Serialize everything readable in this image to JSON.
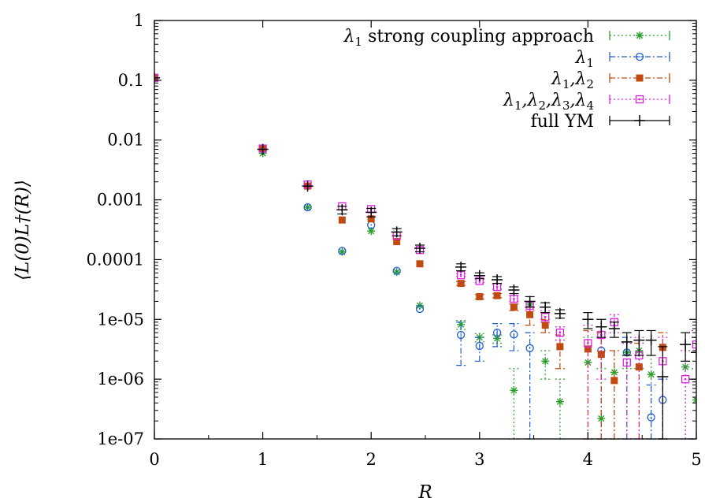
{
  "chart_data": {
    "type": "scatter",
    "title": "",
    "xlabel": "R",
    "ylabel": "⟨L(0)L†(R)⟩",
    "xlim": [
      0,
      5
    ],
    "ylim": [
      1e-07,
      1
    ],
    "yscale": "log",
    "xticks": [
      "0",
      "1",
      "2",
      "3",
      "4",
      "5"
    ],
    "yticks": [
      "1e-07",
      "1e-06",
      "1e-05",
      "0.0001",
      "0.001",
      "0.01",
      "0.1",
      "1"
    ],
    "grid": false,
    "legend_position": "top-right",
    "series": [
      {
        "name": "λ1 strong coupling approach",
        "color": "#2ca02c",
        "marker": "asterisk",
        "linestyle": "dotted",
        "points": [
          [
            0,
            0.11,
            0.11,
            0.11
          ],
          [
            1,
            0.006,
            0.006,
            0.006
          ],
          [
            1.414,
            0.00075,
            0.00075,
            0.00075
          ],
          [
            1.732,
            0.000135,
            0.000135,
            0.000135
          ],
          [
            2,
            0.0003,
            0.0003,
            0.0003
          ],
          [
            2.236,
            6.2e-05,
            6.2e-05,
            6.2e-05
          ],
          [
            2.449,
            1.7e-05,
            1.7e-05,
            1.7e-05
          ],
          [
            2.828,
            8.2e-06,
            6.8e-06,
            9.6e-06
          ],
          [
            3,
            5e-06,
            4.2e-06,
            5.8e-06
          ],
          [
            3.162,
            4.8e-06,
            4e-06,
            5.5e-06
          ],
          [
            3.317,
            6.5e-07,
            1e-07,
            1.5e-06
          ],
          [
            3.464,
            1.8e-05,
            1.6e-05,
            2e-05
          ],
          [
            3.606,
            2e-06,
            1e-06,
            3e-06
          ],
          [
            3.742,
            4.2e-07,
            1e-07,
            1e-06
          ],
          [
            4,
            1.9e-06,
            1e-07,
            5e-06
          ],
          [
            4.123,
            2.2e-07,
            1e-07,
            1.5e-06
          ],
          [
            4.243,
            1.3e-06,
            1e-07,
            3e-06
          ],
          [
            4.359,
            2.8e-06,
            1.5e-06,
            4e-06
          ],
          [
            4.472,
            3e-06,
            1.5e-06,
            4.5e-06
          ],
          [
            4.583,
            1.2e-06,
            1e-07,
            2.5e-06
          ],
          [
            4.899,
            1.6e-06,
            1e-07,
            3e-06
          ],
          [
            5,
            4.5e-07,
            1e-07,
            1.5e-06
          ]
        ]
      },
      {
        "name": "λ1",
        "color": "#1f5fd0",
        "marker": "open-circle",
        "linestyle": "dash-dot",
        "points": [
          [
            0,
            0.11,
            0.11,
            0.11
          ],
          [
            1,
            0.007,
            0.007,
            0.007
          ],
          [
            1.414,
            0.00075,
            0.00075,
            0.00075
          ],
          [
            1.732,
            0.00014,
            0.00014,
            0.00014
          ],
          [
            2,
            0.00038,
            0.00038,
            0.00038
          ],
          [
            2.236,
            6.5e-05,
            6.5e-05,
            6.5e-05
          ],
          [
            2.449,
            1.5e-05,
            1.5e-05,
            1.5e-05
          ],
          [
            2.828,
            5.5e-06,
            1.7e-06,
            9e-06
          ],
          [
            3,
            3.6e-06,
            2e-06,
            5e-06
          ],
          [
            3.162,
            6e-06,
            3.5e-06,
            8.5e-06
          ],
          [
            3.317,
            5.6e-06,
            3e-06,
            8.5e-06
          ],
          [
            3.464,
            3.3e-06,
            1e-07,
            6e-06
          ],
          [
            4.123,
            3e-06,
            1e-07,
            6e-06
          ],
          [
            4.359,
            2.8e-06,
            1e-07,
            5e-06
          ],
          [
            4.583,
            2.3e-07,
            1e-07,
            8e-07
          ],
          [
            4.69,
            4.5e-07,
            1e-07,
            1e-06
          ]
        ]
      },
      {
        "name": "λ1,λ2",
        "color": "#c04a10",
        "marker": "filled-square",
        "linestyle": "dash-dot",
        "points": [
          [
            0,
            0.11,
            0.11,
            0.11
          ],
          [
            1,
            0.0072,
            0.0072,
            0.0072
          ],
          [
            1.414,
            0.0017,
            0.0017,
            0.0017
          ],
          [
            1.732,
            0.00046,
            0.00046,
            0.00046
          ],
          [
            2,
            0.00048,
            0.00048,
            0.00048
          ],
          [
            2.236,
            0.0002,
            0.0002,
            0.0002
          ],
          [
            2.449,
            8.5e-05,
            8.5e-05,
            8.5e-05
          ],
          [
            2.828,
            4e-05,
            3.7e-05,
            4.3e-05
          ],
          [
            3,
            2.4e-05,
            2.2e-05,
            2.6e-05
          ],
          [
            3.162,
            2.5e-05,
            2.3e-05,
            2.7e-05
          ],
          [
            3.317,
            1.6e-05,
            1.4e-05,
            1.8e-05
          ],
          [
            3.464,
            1.2e-05,
            8e-06,
            1.6e-05
          ],
          [
            3.606,
            8e-06,
            6e-06,
            1e-05
          ],
          [
            3.742,
            3.5e-06,
            1.5e-06,
            5.5e-06
          ],
          [
            4,
            3.2e-06,
            1e-07,
            6.5e-06
          ],
          [
            4.123,
            2.6e-06,
            1e-07,
            6e-06
          ],
          [
            4.243,
            9.5e-07,
            1e-07,
            3e-06
          ],
          [
            4.472,
            1.6e-06,
            1e-07,
            4e-06
          ],
          [
            4.69,
            3.4e-06,
            1e-07,
            6e-06
          ]
        ]
      },
      {
        "name": "λ1,λ2,λ3,λ4",
        "color": "#e020e0",
        "marker": "dotted-square",
        "linestyle": "dotted",
        "points": [
          [
            0,
            0.11,
            0.11,
            0.11
          ],
          [
            1,
            0.0072,
            0.0072,
            0.0072
          ],
          [
            1.414,
            0.0018,
            0.0018,
            0.0018
          ],
          [
            1.732,
            0.00078,
            0.00078,
            0.00078
          ],
          [
            2,
            0.0007,
            0.0007,
            0.0007
          ],
          [
            2.236,
            0.00025,
            0.00025,
            0.00025
          ],
          [
            2.449,
            0.000145,
            0.000145,
            0.000145
          ],
          [
            2.828,
            5.5e-05,
            5.2e-05,
            5.8e-05
          ],
          [
            3,
            4.4e-05,
            4.1e-05,
            4.7e-05
          ],
          [
            3.162,
            3.5e-05,
            3.2e-05,
            3.8e-05
          ],
          [
            3.317,
            2.2e-05,
            2e-05,
            2.5e-05
          ],
          [
            3.464,
            1.7e-05,
            1.4e-05,
            2e-05
          ],
          [
            3.606,
            1.1e-05,
            9e-06,
            1.4e-05
          ],
          [
            3.742,
            6e-06,
            4.5e-06,
            7.5e-06
          ],
          [
            4,
            4e-06,
            1e-07,
            8e-06
          ],
          [
            4.123,
            5.5e-06,
            1e-06,
            1e-05
          ],
          [
            4.243,
            9e-06,
            6e-06,
            1.2e-05
          ],
          [
            4.359,
            1.9e-06,
            1e-07,
            4e-06
          ],
          [
            4.472,
            2.5e-06,
            1e-07,
            5e-06
          ],
          [
            4.69,
            2e-06,
            1e-07,
            5e-06
          ],
          [
            4.899,
            1e-06,
            1e-07,
            3e-06
          ],
          [
            5,
            3.8e-06,
            1e-07,
            6.5e-06
          ]
        ]
      },
      {
        "name": "full YM",
        "color": "#000000",
        "marker": "plus",
        "linestyle": "solid",
        "points": [
          [
            0,
            0.11,
            0.11,
            0.11
          ],
          [
            1,
            0.007,
            0.007,
            0.007
          ],
          [
            1.414,
            0.0017,
            0.0017,
            0.0017
          ],
          [
            1.732,
            0.00068,
            0.00058,
            0.00078
          ],
          [
            2,
            0.00062,
            0.00052,
            0.00072
          ],
          [
            2.236,
            0.00029,
            0.00025,
            0.00033
          ],
          [
            2.449,
            0.000155,
            0.000135,
            0.000175
          ],
          [
            2.828,
            7.5e-05,
            6.5e-05,
            8.5e-05
          ],
          [
            3,
            5.4e-05,
            4.8e-05,
            6e-05
          ],
          [
            3.162,
            4.6e-05,
            4e-05,
            5.2e-05
          ],
          [
            3.317,
            3.1e-05,
            2.7e-05,
            3.5e-05
          ],
          [
            3.464,
            2e-05,
            1.6e-05,
            2.4e-05
          ],
          [
            3.606,
            1.6e-05,
            1.3e-05,
            1.9e-05
          ],
          [
            3.742,
            1.25e-05,
            1.05e-05,
            1.45e-05
          ],
          [
            4,
            1e-05,
            7e-06,
            1.3e-05
          ],
          [
            4.123,
            7.5e-06,
            5e-06,
            1e-05
          ],
          [
            4.243,
            7e-06,
            5e-06,
            9e-06
          ],
          [
            4.359,
            4.2e-06,
            2.5e-06,
            6e-06
          ],
          [
            4.472,
            4.5e-06,
            2.5e-06,
            6.5e-06
          ],
          [
            4.583,
            4.5e-06,
            2.5e-06,
            6.5e-06
          ],
          [
            4.69,
            1.1e-06,
            1e-07,
            3.5e-06
          ],
          [
            4.899,
            3.8e-06,
            2e-06,
            6e-06
          ],
          [
            5,
            2.8e-06,
            1e-06,
            5e-06
          ]
        ]
      }
    ]
  }
}
